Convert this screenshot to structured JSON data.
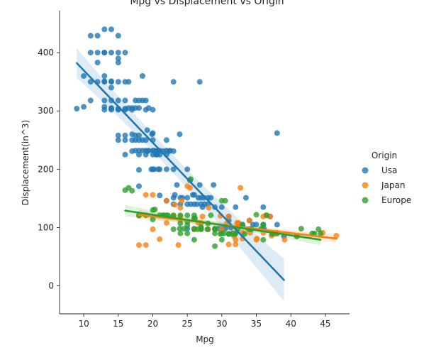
{
  "chart_data": {
    "type": "scatter",
    "title": "Mpg vs Displacement vs Origin",
    "xlabel": "Mpg",
    "ylabel": "Displacement(in^3)",
    "xlim": [
      6.5,
      48.5
    ],
    "ylim": [
      -48,
      472
    ],
    "xticks": [
      10,
      15,
      20,
      25,
      30,
      35,
      40,
      45
    ],
    "yticks": [
      0,
      100,
      200,
      300,
      400
    ],
    "grid": false,
    "legend": {
      "title": "Origin",
      "placement": "right"
    },
    "series": [
      {
        "name": "Usa",
        "color": "#1f77b4",
        "regression": {
          "x": [
            9,
            39
          ],
          "y": [
            382,
            10
          ],
          "ci_halfwidth_ends": [
            20,
            42
          ]
        },
        "points": [
          [
            9,
            304
          ],
          [
            10,
            307
          ],
          [
            10,
            360
          ],
          [
            11,
            318
          ],
          [
            11,
            400
          ],
          [
            11,
            429
          ],
          [
            11,
            350
          ],
          [
            12,
            383
          ],
          [
            12,
            400
          ],
          [
            12,
            429
          ],
          [
            12,
            350
          ],
          [
            13,
            350
          ],
          [
            13,
            400
          ],
          [
            13,
            440
          ],
          [
            13,
            360
          ],
          [
            13,
            318
          ],
          [
            13,
            302
          ],
          [
            13,
            307
          ],
          [
            13,
            351
          ],
          [
            13,
            400
          ],
          [
            14,
            440
          ],
          [
            14,
            350
          ],
          [
            14,
            318
          ],
          [
            14,
            302
          ],
          [
            14,
            304
          ],
          [
            14,
            400
          ],
          [
            14,
            340
          ],
          [
            14,
            351
          ],
          [
            14,
            305
          ],
          [
            15,
            429
          ],
          [
            15,
            390
          ],
          [
            15,
            383
          ],
          [
            15,
            350
          ],
          [
            15,
            318
          ],
          [
            15,
            304
          ],
          [
            15,
            302
          ],
          [
            15,
            258
          ],
          [
            15,
            250
          ],
          [
            15,
            400
          ],
          [
            16,
            400
          ],
          [
            16,
            350
          ],
          [
            16,
            318
          ],
          [
            16,
            304
          ],
          [
            16,
            302
          ],
          [
            16,
            258
          ],
          [
            16,
            250
          ],
          [
            16,
            225
          ],
          [
            16.5,
            350
          ],
          [
            16.5,
            305
          ],
          [
            17,
            302
          ],
          [
            17,
            305
          ],
          [
            17,
            260
          ],
          [
            17,
            250
          ],
          [
            17,
            231
          ],
          [
            17.5,
            318
          ],
          [
            17.5,
            305
          ],
          [
            17.5,
            258
          ],
          [
            17.5,
            250
          ],
          [
            17.5,
            232
          ],
          [
            18,
            318
          ],
          [
            18,
            305
          ],
          [
            18,
            258
          ],
          [
            18,
            250
          ],
          [
            18,
            232
          ],
          [
            18,
            225
          ],
          [
            18,
            199
          ],
          [
            18,
            171
          ],
          [
            18.5,
            360
          ],
          [
            18.5,
            318
          ],
          [
            18.5,
            250
          ],
          [
            18.5,
            232
          ],
          [
            19,
            318
          ],
          [
            19,
            302
          ],
          [
            19,
            250
          ],
          [
            19,
            232
          ],
          [
            19,
            225
          ],
          [
            19.2,
            267
          ],
          [
            19.2,
            231
          ],
          [
            19.4,
            305
          ],
          [
            19.4,
            232
          ],
          [
            19.9,
            260
          ],
          [
            19.8,
            200
          ],
          [
            20,
            302
          ],
          [
            20,
            262
          ],
          [
            20,
            250
          ],
          [
            20,
            232
          ],
          [
            20,
            225
          ],
          [
            20,
            200
          ],
          [
            20.2,
            232
          ],
          [
            20.2,
            200
          ],
          [
            20.5,
            231
          ],
          [
            20.5,
            225
          ],
          [
            20.6,
            231
          ],
          [
            20.6,
            225
          ],
          [
            20.8,
            200
          ],
          [
            21,
            232
          ],
          [
            21,
            225
          ],
          [
            21,
            200
          ],
          [
            21,
            155
          ],
          [
            21.5,
            231
          ],
          [
            22,
            250
          ],
          [
            22,
            232
          ],
          [
            22,
            225
          ],
          [
            22,
            200
          ],
          [
            22,
            146
          ],
          [
            22.4,
            231
          ],
          [
            22.5,
            232
          ],
          [
            23,
            350
          ],
          [
            23,
            231
          ],
          [
            23,
            200
          ],
          [
            23,
            151
          ],
          [
            23,
            140
          ],
          [
            23.2,
            156
          ],
          [
            23.5,
            173
          ],
          [
            23.9,
            260
          ],
          [
            24,
            151
          ],
          [
            24,
            140
          ],
          [
            24.3,
            151
          ],
          [
            25,
            200
          ],
          [
            25,
            151
          ],
          [
            25,
            140
          ],
          [
            25,
            98
          ],
          [
            25.4,
            181
          ],
          [
            25.5,
            140
          ],
          [
            25.8,
            156
          ],
          [
            26,
            156
          ],
          [
            26,
            140
          ],
          [
            26.4,
            140
          ],
          [
            26.6,
            151
          ],
          [
            26.8,
            173
          ],
          [
            26.8,
            350
          ],
          [
            27,
            151
          ],
          [
            27,
            140
          ],
          [
            27.2,
            135
          ],
          [
            27.4,
            151
          ],
          [
            27.5,
            140
          ],
          [
            28,
            151
          ],
          [
            28,
            140
          ],
          [
            28,
            97
          ],
          [
            28.4,
            151
          ],
          [
            28.8,
            173
          ],
          [
            29,
            135
          ],
          [
            29,
            97
          ],
          [
            30,
            135
          ],
          [
            30,
            98
          ],
          [
            30.5,
            98
          ],
          [
            31,
            112
          ],
          [
            31,
            119
          ],
          [
            31.3,
            100
          ],
          [
            32,
            135
          ],
          [
            32.4,
            107
          ],
          [
            33,
            105
          ],
          [
            33.5,
            151
          ],
          [
            34,
            112
          ],
          [
            34.5,
            105
          ],
          [
            35,
            105
          ],
          [
            36,
            105
          ],
          [
            36,
            135
          ],
          [
            37,
            119
          ],
          [
            38,
            105
          ],
          [
            38,
            262
          ],
          [
            39,
            85
          ],
          [
            36.1,
            98
          ],
          [
            26,
            98
          ],
          [
            27,
            98
          ],
          [
            29.5,
            98
          ]
        ]
      },
      {
        "name": "Japan",
        "color": "#ff7f0e",
        "regression": {
          "x": [
            18,
            46.6
          ],
          "y": [
            122,
            81
          ],
          "ci_halfwidth_ends": [
            8,
            8
          ]
        },
        "points": [
          [
            18,
            70
          ],
          [
            19,
            70
          ],
          [
            18,
            120
          ],
          [
            19,
            156
          ],
          [
            20,
            156
          ],
          [
            20,
            97
          ],
          [
            21,
            80
          ],
          [
            22,
            146
          ],
          [
            22,
            108
          ],
          [
            23,
            120
          ],
          [
            23.7,
            70
          ],
          [
            24,
            113
          ],
          [
            24,
            119
          ],
          [
            24,
            134
          ],
          [
            25,
            171
          ],
          [
            27,
            97
          ],
          [
            27,
            108
          ],
          [
            27.2,
            119
          ],
          [
            28,
            97
          ],
          [
            29,
            97
          ],
          [
            30,
            97
          ],
          [
            31,
            119
          ],
          [
            31,
            71
          ],
          [
            31.6,
            91
          ],
          [
            32,
            71
          ],
          [
            32,
            79
          ],
          [
            32.2,
            108
          ],
          [
            32.7,
            168
          ],
          [
            33,
            81
          ],
          [
            33,
            91
          ],
          [
            34,
            97
          ],
          [
            34,
            112
          ],
          [
            35,
            79
          ],
          [
            35.1,
            81
          ],
          [
            36,
            119
          ],
          [
            36,
            91
          ],
          [
            36.4,
            121
          ],
          [
            37,
            119
          ],
          [
            37.7,
            89
          ],
          [
            38,
            91
          ],
          [
            39.1,
            79
          ],
          [
            40.8,
            85
          ],
          [
            44.6,
            91
          ],
          [
            46.6,
            86
          ],
          [
            29.8,
            120
          ],
          [
            28.1,
            134
          ],
          [
            31.8,
            85
          ],
          [
            33.8,
            97
          ],
          [
            30.7,
            107
          ],
          [
            24.2,
            146
          ],
          [
            26,
            97
          ],
          [
            25.4,
            168
          ],
          [
            32.4,
            108
          ],
          [
            37.2,
            86
          ],
          [
            34.1,
            91
          ],
          [
            23.2,
            139
          ],
          [
            26.6,
            108
          ]
        ]
      },
      {
        "name": "Europe",
        "color": "#2ca02c",
        "regression": {
          "x": [
            16,
            44.3
          ],
          "y": [
            129,
            79
          ],
          "ci_halfwidth_ends": [
            10,
            9
          ]
        },
        "points": [
          [
            16,
            164
          ],
          [
            16.5,
            168
          ],
          [
            17,
            163
          ],
          [
            18,
            121
          ],
          [
            19,
            121
          ],
          [
            20,
            130
          ],
          [
            20,
            114
          ],
          [
            20.3,
            131
          ],
          [
            21,
            121
          ],
          [
            21.5,
            121
          ],
          [
            22,
            121
          ],
          [
            23,
            121
          ],
          [
            23,
            97
          ],
          [
            24,
            121
          ],
          [
            24,
            107
          ],
          [
            24,
            90
          ],
          [
            25,
            121
          ],
          [
            25,
            104
          ],
          [
            25,
            110
          ],
          [
            25,
            90
          ],
          [
            25.5,
            183
          ],
          [
            26,
            121
          ],
          [
            26,
            116
          ],
          [
            26,
            97
          ],
          [
            26,
            79
          ],
          [
            27,
            97
          ],
          [
            27,
            101
          ],
          [
            28,
            107
          ],
          [
            29,
            97
          ],
          [
            29,
            98
          ],
          [
            29,
            90
          ],
          [
            29,
            68
          ],
          [
            30,
            90
          ],
          [
            30,
            79
          ],
          [
            30,
            146
          ],
          [
            30.5,
            146
          ],
          [
            31,
            89
          ],
          [
            31,
            89
          ],
          [
            31.5,
            89
          ],
          [
            32,
            90
          ],
          [
            32.3,
            97
          ],
          [
            33,
            105
          ],
          [
            34,
            97
          ],
          [
            34.3,
            97
          ],
          [
            35,
            122
          ],
          [
            35.7,
            98
          ],
          [
            36,
            79
          ],
          [
            36,
            105
          ],
          [
            36.5,
            121
          ],
          [
            38,
            90
          ],
          [
            41.5,
            98
          ],
          [
            43.1,
            90
          ],
          [
            43.4,
            90
          ],
          [
            44,
            97
          ],
          [
            44.3,
            90
          ],
          [
            29.8,
            89
          ],
          [
            31.9,
            89
          ],
          [
            27.9,
            97
          ],
          [
            26.5,
            97
          ],
          [
            23.9,
            98
          ],
          [
            33.3,
            89
          ],
          [
            30.3,
            90
          ],
          [
            28.4,
            121
          ],
          [
            21.6,
            121
          ],
          [
            22.2,
            121
          ],
          [
            24.5,
            98
          ],
          [
            26.1,
            116
          ],
          [
            37.3,
            89
          ],
          [
            40.9,
            85
          ]
        ]
      }
    ]
  }
}
